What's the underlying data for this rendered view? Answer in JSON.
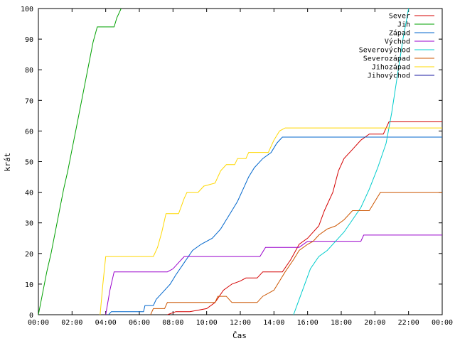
{
  "chart_data": {
    "type": "line",
    "xlabel": "Čas",
    "ylabel": "krát",
    "xlim": [
      "00:00",
      "24:00"
    ],
    "ylim": [
      0,
      100
    ],
    "x_tick_labels": [
      "00:00",
      "02:00",
      "04:00",
      "06:00",
      "08:00",
      "10:00",
      "12:00",
      "14:00",
      "16:00",
      "18:00",
      "20:00",
      "22:00",
      "00:00"
    ],
    "y_tick_labels": [
      "0",
      "10",
      "20",
      "30",
      "40",
      "50",
      "60",
      "70",
      "80",
      "90",
      "100"
    ],
    "grid": false,
    "legend": "top-right",
    "series": [
      {
        "name": "Sever",
        "color": "#d40000",
        "points": [
          [
            "07:40",
            0
          ],
          [
            "08:10",
            1
          ],
          [
            "09:00",
            1
          ],
          [
            "10:00",
            2
          ],
          [
            "10:30",
            4
          ],
          [
            "11:00",
            8
          ],
          [
            "11:30",
            10
          ],
          [
            "12:00",
            11
          ],
          [
            "12:20",
            12
          ],
          [
            "13:00",
            12
          ],
          [
            "13:20",
            14
          ],
          [
            "14:30",
            14
          ],
          [
            "15:00",
            18
          ],
          [
            "15:30",
            23
          ],
          [
            "16:00",
            25
          ],
          [
            "16:40",
            29
          ],
          [
            "17:00",
            34
          ],
          [
            "17:30",
            40
          ],
          [
            "17:50",
            47
          ],
          [
            "18:10",
            51
          ],
          [
            "18:40",
            54
          ],
          [
            "19:10",
            57
          ],
          [
            "19:40",
            59
          ],
          [
            "20:30",
            59
          ],
          [
            "20:50",
            63
          ],
          [
            "24:00",
            63
          ]
        ]
      },
      {
        "name": "Jih",
        "color": "#00a000",
        "points": [
          [
            "00:00",
            0
          ],
          [
            "00:15",
            7
          ],
          [
            "00:30",
            14
          ],
          [
            "00:45",
            20
          ],
          [
            "01:00",
            27
          ],
          [
            "01:15",
            34
          ],
          [
            "01:30",
            41
          ],
          [
            "01:45",
            47
          ],
          [
            "02:00",
            54
          ],
          [
            "02:15",
            61
          ],
          [
            "02:30",
            68
          ],
          [
            "02:45",
            75
          ],
          [
            "03:00",
            82
          ],
          [
            "03:15",
            89
          ],
          [
            "03:30",
            94
          ],
          [
            "04:30",
            94
          ],
          [
            "04:40",
            97
          ],
          [
            "04:55",
            100
          ]
        ]
      },
      {
        "name": "Západ",
        "color": "#0066cc",
        "points": [
          [
            "04:10",
            0
          ],
          [
            "04:20",
            1
          ],
          [
            "06:15",
            1
          ],
          [
            "06:20",
            3
          ],
          [
            "06:50",
            3
          ],
          [
            "07:00",
            5
          ],
          [
            "07:20",
            7
          ],
          [
            "07:50",
            10
          ],
          [
            "08:10",
            13
          ],
          [
            "08:40",
            17
          ],
          [
            "09:10",
            21
          ],
          [
            "09:40",
            23
          ],
          [
            "10:20",
            25
          ],
          [
            "10:50",
            28
          ],
          [
            "11:10",
            31
          ],
          [
            "11:30",
            34
          ],
          [
            "11:50",
            37
          ],
          [
            "12:10",
            41
          ],
          [
            "12:30",
            45
          ],
          [
            "12:50",
            48
          ],
          [
            "13:20",
            51
          ],
          [
            "13:50",
            53
          ],
          [
            "14:10",
            56
          ],
          [
            "14:30",
            58
          ],
          [
            "24:00",
            58
          ]
        ]
      },
      {
        "name": "Východ",
        "color": "#9900cc",
        "points": [
          [
            "04:00",
            0
          ],
          [
            "04:15",
            8
          ],
          [
            "04:30",
            14
          ],
          [
            "07:40",
            14
          ],
          [
            "08:00",
            15
          ],
          [
            "08:20",
            17
          ],
          [
            "08:40",
            19
          ],
          [
            "13:10",
            19
          ],
          [
            "13:30",
            22
          ],
          [
            "15:30",
            22
          ],
          [
            "16:00",
            24
          ],
          [
            "19:10",
            24
          ],
          [
            "19:20",
            26
          ],
          [
            "24:00",
            26
          ]
        ]
      },
      {
        "name": "Severovýchod",
        "color": "#00cccc",
        "points": [
          [
            "15:10",
            0
          ],
          [
            "15:30",
            5
          ],
          [
            "15:50",
            10
          ],
          [
            "16:10",
            15
          ],
          [
            "16:40",
            19
          ],
          [
            "17:10",
            21
          ],
          [
            "17:40",
            24
          ],
          [
            "18:10",
            27
          ],
          [
            "18:40",
            31
          ],
          [
            "19:10",
            35
          ],
          [
            "19:40",
            41
          ],
          [
            "20:10",
            48
          ],
          [
            "20:40",
            56
          ],
          [
            "21:00",
            66
          ],
          [
            "21:20",
            78
          ],
          [
            "21:40",
            90
          ],
          [
            "22:00",
            100
          ]
        ]
      },
      {
        "name": "Severozápad",
        "color": "#cc5500",
        "points": [
          [
            "06:40",
            0
          ],
          [
            "06:50",
            2
          ],
          [
            "07:30",
            2
          ],
          [
            "07:40",
            4
          ],
          [
            "10:30",
            4
          ],
          [
            "10:40",
            6
          ],
          [
            "11:10",
            6
          ],
          [
            "11:30",
            4
          ],
          [
            "13:00",
            4
          ],
          [
            "13:20",
            6
          ],
          [
            "14:00",
            8
          ],
          [
            "14:20",
            11
          ],
          [
            "14:40",
            14
          ],
          [
            "15:10",
            18
          ],
          [
            "15:30",
            21
          ],
          [
            "16:00",
            23
          ],
          [
            "16:20",
            24
          ],
          [
            "16:40",
            26
          ],
          [
            "17:10",
            28
          ],
          [
            "17:40",
            29
          ],
          [
            "18:10",
            31
          ],
          [
            "18:40",
            34
          ],
          [
            "19:40",
            34
          ],
          [
            "20:00",
            37
          ],
          [
            "20:20",
            40
          ],
          [
            "24:00",
            40
          ]
        ]
      },
      {
        "name": "Jihozápad",
        "color": "#ffd800",
        "points": [
          [
            "03:40",
            0
          ],
          [
            "03:50",
            10
          ],
          [
            "04:00",
            19
          ],
          [
            "06:50",
            19
          ],
          [
            "07:05",
            22
          ],
          [
            "07:20",
            27
          ],
          [
            "07:35",
            33
          ],
          [
            "08:20",
            33
          ],
          [
            "08:40",
            38
          ],
          [
            "08:50",
            40
          ],
          [
            "09:30",
            40
          ],
          [
            "09:50",
            42
          ],
          [
            "10:30",
            43
          ],
          [
            "10:50",
            47
          ],
          [
            "11:10",
            49
          ],
          [
            "11:40",
            49
          ],
          [
            "11:50",
            51
          ],
          [
            "12:20",
            51
          ],
          [
            "12:30",
            53
          ],
          [
            "13:40",
            53
          ],
          [
            "14:00",
            57
          ],
          [
            "14:20",
            60
          ],
          [
            "14:40",
            61
          ],
          [
            "24:00",
            61
          ]
        ]
      },
      {
        "name": "Jihovýchod",
        "color": "#1a1aa0",
        "points": []
      }
    ]
  }
}
